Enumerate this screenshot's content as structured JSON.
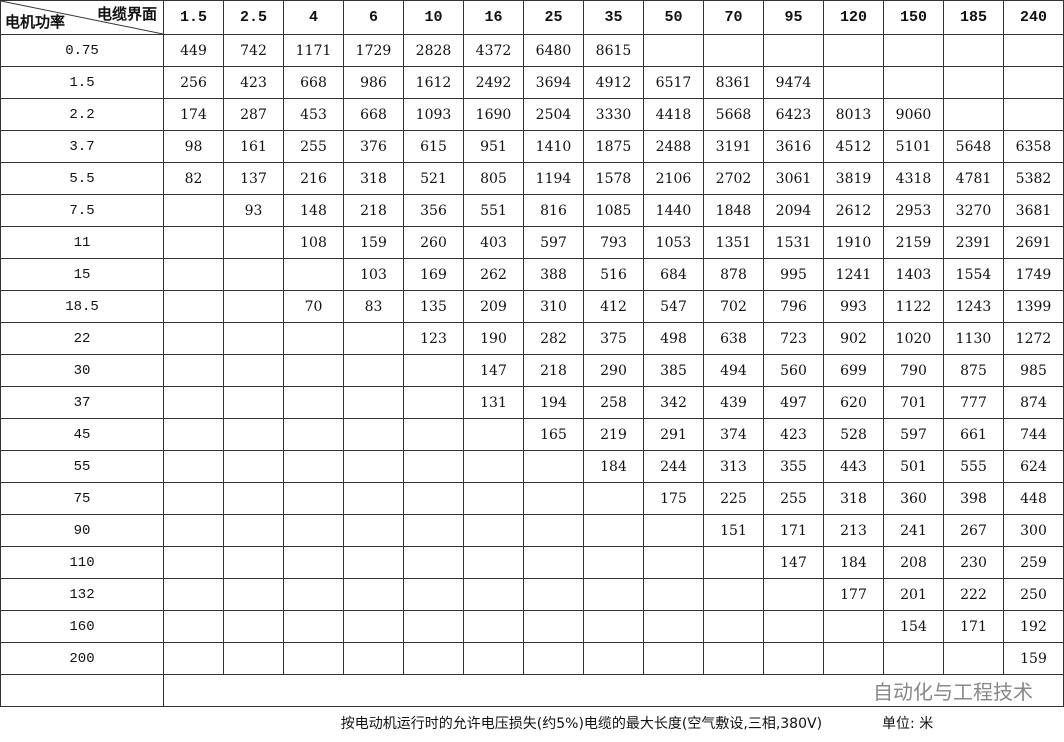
{
  "header": {
    "corner_top": "电缆界面",
    "corner_bottom": "电机功率",
    "sections": [
      "1.5",
      "2.5",
      "4",
      "6",
      "10",
      "16",
      "25",
      "35",
      "50",
      "70",
      "95",
      "120",
      "150",
      "185",
      "240"
    ]
  },
  "table": {
    "rows": [
      {
        "power": "0.75",
        "cells": [
          449,
          742,
          1171,
          1729,
          2828,
          4372,
          6480,
          8615,
          null,
          null,
          null,
          null,
          null,
          null,
          null
        ]
      },
      {
        "power": "1.5",
        "cells": [
          256,
          423,
          668,
          986,
          1612,
          2492,
          3694,
          4912,
          6517,
          8361,
          9474,
          null,
          null,
          null,
          null
        ]
      },
      {
        "power": "2.2",
        "cells": [
          174,
          287,
          453,
          668,
          1093,
          1690,
          2504,
          3330,
          4418,
          5668,
          6423,
          8013,
          9060,
          null,
          null
        ]
      },
      {
        "power": "3.7",
        "cells": [
          98,
          161,
          255,
          376,
          615,
          951,
          1410,
          1875,
          2488,
          3191,
          3616,
          4512,
          5101,
          5648,
          6358
        ]
      },
      {
        "power": "5.5",
        "cells": [
          82,
          137,
          216,
          318,
          521,
          805,
          1194,
          1578,
          2106,
          2702,
          3061,
          3819,
          4318,
          4781,
          5382
        ]
      },
      {
        "power": "7.5",
        "cells": [
          null,
          93,
          148,
          218,
          356,
          551,
          816,
          1085,
          1440,
          1848,
          2094,
          2612,
          2953,
          3270,
          3681
        ]
      },
      {
        "power": "11",
        "cells": [
          null,
          null,
          108,
          159,
          260,
          403,
          597,
          793,
          1053,
          1351,
          1531,
          1910,
          2159,
          2391,
          2691
        ]
      },
      {
        "power": "15",
        "cells": [
          null,
          null,
          null,
          103,
          169,
          262,
          388,
          516,
          684,
          878,
          995,
          1241,
          1403,
          1554,
          1749
        ]
      },
      {
        "power": "18.5",
        "cells": [
          null,
          null,
          70,
          83,
          135,
          209,
          310,
          412,
          547,
          702,
          796,
          993,
          1122,
          1243,
          1399
        ]
      },
      {
        "power": "22",
        "cells": [
          null,
          null,
          null,
          null,
          123,
          190,
          282,
          375,
          498,
          638,
          723,
          902,
          1020,
          1130,
          1272
        ]
      },
      {
        "power": "30",
        "cells": [
          null,
          null,
          null,
          null,
          null,
          147,
          218,
          290,
          385,
          494,
          560,
          699,
          790,
          875,
          985
        ]
      },
      {
        "power": "37",
        "cells": [
          null,
          null,
          null,
          null,
          null,
          131,
          194,
          258,
          342,
          439,
          497,
          620,
          701,
          777,
          874
        ]
      },
      {
        "power": "45",
        "cells": [
          null,
          null,
          null,
          null,
          null,
          null,
          165,
          219,
          291,
          374,
          423,
          528,
          597,
          661,
          744
        ]
      },
      {
        "power": "55",
        "cells": [
          null,
          null,
          null,
          null,
          null,
          null,
          null,
          184,
          244,
          313,
          355,
          443,
          501,
          555,
          624
        ]
      },
      {
        "power": "75",
        "cells": [
          null,
          null,
          null,
          null,
          null,
          null,
          null,
          null,
          175,
          225,
          255,
          318,
          360,
          398,
          448
        ]
      },
      {
        "power": "90",
        "cells": [
          null,
          null,
          null,
          null,
          null,
          null,
          null,
          null,
          null,
          151,
          171,
          213,
          241,
          267,
          300
        ]
      },
      {
        "power": "110",
        "cells": [
          null,
          null,
          null,
          null,
          null,
          null,
          null,
          null,
          null,
          null,
          147,
          184,
          208,
          230,
          259
        ]
      },
      {
        "power": "132",
        "cells": [
          null,
          null,
          null,
          null,
          null,
          null,
          null,
          null,
          null,
          null,
          null,
          177,
          201,
          222,
          250
        ]
      },
      {
        "power": "160",
        "cells": [
          null,
          null,
          null,
          null,
          null,
          null,
          null,
          null,
          null,
          null,
          null,
          null,
          154,
          171,
          192
        ]
      },
      {
        "power": "200",
        "cells": [
          null,
          null,
          null,
          null,
          null,
          null,
          null,
          null,
          null,
          null,
          null,
          null,
          null,
          null,
          159
        ]
      }
    ]
  },
  "watermark": "自动化与工程技术",
  "footer": {
    "note": "按电动机运行时的允许电压损失(约5%)电缆的最大长度(空气敷设,三相,380V)",
    "unit": "单位: 米"
  }
}
